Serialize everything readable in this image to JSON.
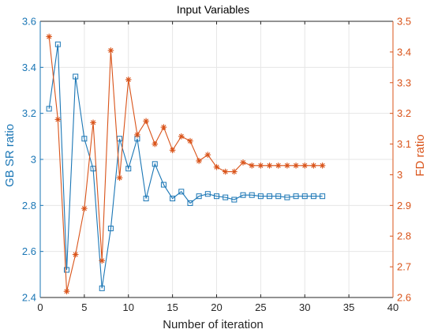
{
  "chart_data": {
    "type": "line",
    "title": "Input Variables",
    "xlabel": "Number of iteration",
    "ylabel_left": "GB SR ratio",
    "ylabel_right": "FD ratio",
    "xlim": [
      0,
      40
    ],
    "ylim_left": [
      2.4,
      3.6
    ],
    "ylim_right": [
      2.6,
      3.5
    ],
    "x_ticks": [
      "0",
      "5",
      "10",
      "15",
      "20",
      "25",
      "30",
      "35",
      "40"
    ],
    "y_left_ticks": [
      "2.4",
      "2.6",
      "2.8",
      "3",
      "3.2",
      "3.4",
      "3.6"
    ],
    "y_right_ticks": [
      "2.6",
      "2.7",
      "2.8",
      "2.9",
      "3",
      "3.1",
      "3.2",
      "3.3",
      "3.4",
      "3.5"
    ],
    "grid": true,
    "legend": false,
    "x": [
      1,
      2,
      3,
      4,
      5,
      6,
      7,
      8,
      9,
      10,
      11,
      12,
      13,
      14,
      15,
      16,
      17,
      18,
      19,
      20,
      21,
      22,
      23,
      24,
      25,
      26,
      27,
      28,
      29,
      30,
      31,
      32
    ],
    "series": [
      {
        "axis": "left",
        "marker": "square",
        "color": "#1a76b5",
        "values": [
          3.22,
          3.5,
          2.52,
          3.36,
          3.09,
          2.96,
          2.44,
          2.7,
          3.09,
          2.96,
          3.09,
          2.83,
          2.98,
          2.89,
          2.83,
          2.86,
          2.81,
          2.84,
          2.85,
          2.84,
          2.835,
          2.825,
          2.845,
          2.845,
          2.84,
          2.84,
          2.84,
          2.835,
          2.84,
          2.84,
          2.84,
          2.84
        ]
      },
      {
        "axis": "right",
        "marker": "asterisk",
        "color": "#d95319",
        "values": [
          3.45,
          3.18,
          2.62,
          2.74,
          2.89,
          3.17,
          2.72,
          3.405,
          2.99,
          3.31,
          3.13,
          3.175,
          3.1,
          3.155,
          3.08,
          3.125,
          3.11,
          3.045,
          3.065,
          3.025,
          3.01,
          3.01,
          3.04,
          3.03,
          3.03,
          3.03,
          3.03,
          3.03,
          3.03,
          3.03,
          3.03,
          3.03
        ]
      }
    ]
  }
}
